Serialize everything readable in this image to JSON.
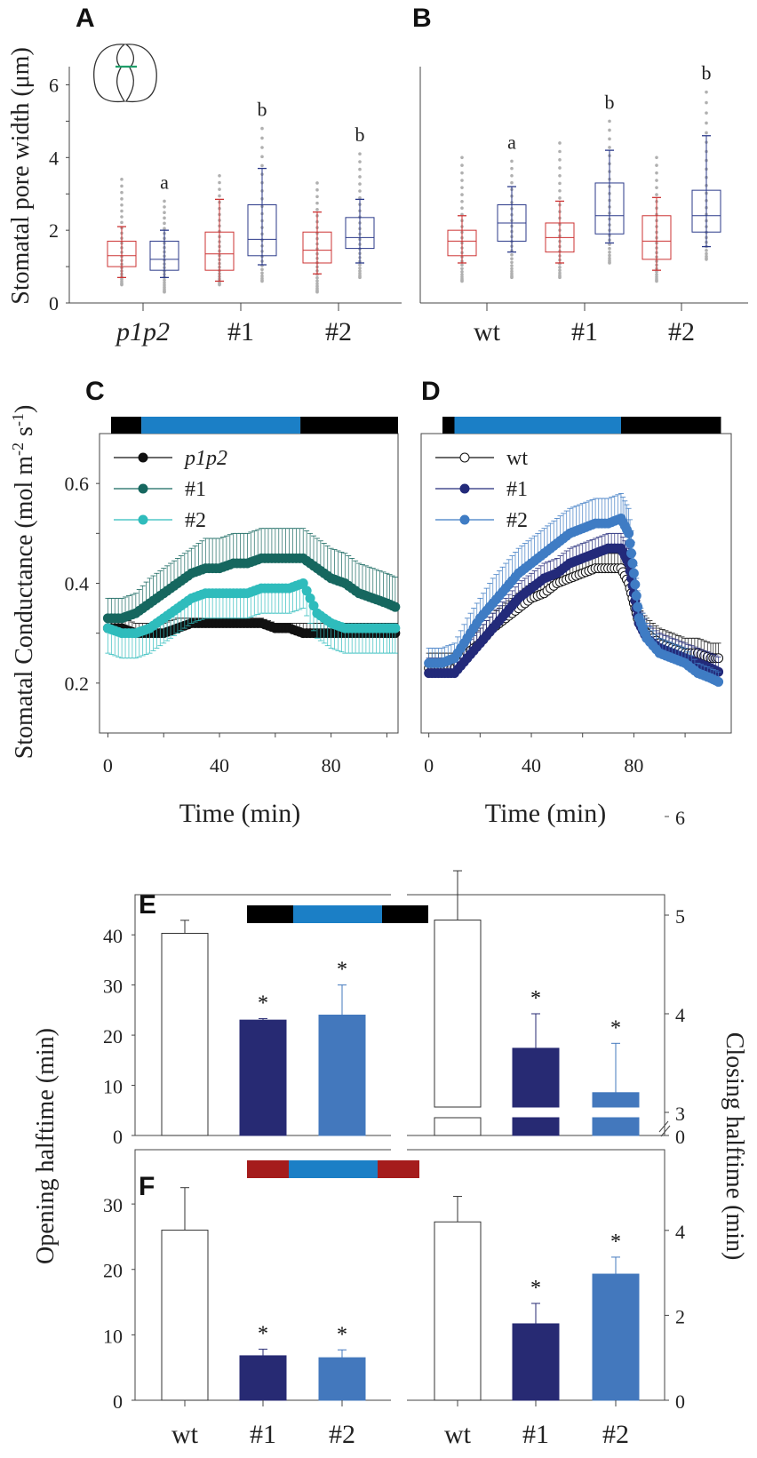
{
  "chart_data": [
    {
      "panel": "A",
      "type": "box",
      "ylabel": "Stomatal pore width (μm)",
      "ylim": [
        0,
        6.5
      ],
      "yticks": [
        0,
        2,
        4,
        6
      ],
      "groups": [
        "p1p2",
        "#1",
        "#2"
      ],
      "box_colors": {
        "dark": "#cc3333",
        "light": "#2b3a8a"
      },
      "boxes": [
        {
          "group": "p1p2",
          "condition": "dark",
          "whisker_low": 0.7,
          "q1": 1.0,
          "median": 1.3,
          "q3": 1.7,
          "whisker_high": 2.1,
          "points_min": 0.5,
          "points_max": 3.4
        },
        {
          "group": "p1p2",
          "condition": "light",
          "whisker_low": 0.7,
          "q1": 0.9,
          "median": 1.2,
          "q3": 1.7,
          "whisker_high": 2.0,
          "points_min": 0.3,
          "points_max": 2.8,
          "letter": "a"
        },
        {
          "group": "#1",
          "condition": "dark",
          "whisker_low": 0.6,
          "q1": 0.9,
          "median": 1.35,
          "q3": 1.95,
          "whisker_high": 2.85,
          "points_min": 0.5,
          "points_max": 3.5
        },
        {
          "group": "#1",
          "condition": "light",
          "whisker_low": 1.05,
          "q1": 1.3,
          "median": 1.75,
          "q3": 2.7,
          "whisker_high": 3.7,
          "points_min": 0.6,
          "points_max": 4.8,
          "letter": "b"
        },
        {
          "group": "#2",
          "condition": "dark",
          "whisker_low": 0.8,
          "q1": 1.1,
          "median": 1.45,
          "q3": 1.95,
          "whisker_high": 2.5,
          "points_min": 0.3,
          "points_max": 3.3
        },
        {
          "group": "#2",
          "condition": "light",
          "whisker_low": 1.1,
          "q1": 1.5,
          "median": 1.8,
          "q3": 2.35,
          "whisker_high": 2.85,
          "points_min": 0.7,
          "points_max": 4.1,
          "letter": "b"
        }
      ]
    },
    {
      "panel": "B",
      "type": "box",
      "ylim": [
        0,
        6.5
      ],
      "groups": [
        "wt",
        "#1",
        "#2"
      ],
      "boxes": [
        {
          "group": "wt",
          "condition": "dark",
          "whisker_low": 1.1,
          "q1": 1.3,
          "median": 1.7,
          "q3": 2.0,
          "whisker_high": 2.4,
          "points_min": 0.6,
          "points_max": 4.0
        },
        {
          "group": "wt",
          "condition": "light",
          "whisker_low": 1.4,
          "q1": 1.7,
          "median": 2.2,
          "q3": 2.7,
          "whisker_high": 3.2,
          "points_min": 0.7,
          "points_max": 3.9,
          "letter": "a"
        },
        {
          "group": "#1",
          "condition": "dark",
          "whisker_low": 1.1,
          "q1": 1.4,
          "median": 1.8,
          "q3": 2.2,
          "whisker_high": 2.8,
          "points_min": 0.7,
          "points_max": 4.4
        },
        {
          "group": "#1",
          "condition": "light",
          "whisker_low": 1.65,
          "q1": 1.9,
          "median": 2.4,
          "q3": 3.3,
          "whisker_high": 4.2,
          "points_min": 1.1,
          "points_max": 5.0,
          "letter": "b"
        },
        {
          "group": "#2",
          "condition": "dark",
          "whisker_low": 0.9,
          "q1": 1.2,
          "median": 1.7,
          "q3": 2.4,
          "whisker_high": 2.9,
          "points_min": 0.6,
          "points_max": 4.0
        },
        {
          "group": "#2",
          "condition": "light",
          "whisker_low": 1.55,
          "q1": 1.95,
          "median": 2.4,
          "q3": 3.1,
          "whisker_high": 4.6,
          "points_min": 1.2,
          "points_max": 5.8,
          "letter": "b"
        }
      ]
    },
    {
      "panel": "C",
      "type": "line",
      "ylabel": "Stomatal Conductance (mol m-2 s-1)",
      "xlabel": "Time (min)",
      "xlim": [
        -3,
        104
      ],
      "ylim": [
        0.1,
        0.7
      ],
      "xticks": [
        0,
        40,
        80
      ],
      "yticks": [
        0.2,
        0.4,
        0.6
      ],
      "light_bar": {
        "dark_end": 12,
        "blue_end": 69,
        "end": 104
      },
      "legend": "top-left",
      "series": [
        {
          "name": "p1p2",
          "color": "#111111",
          "marker": "filled",
          "x": [
            0,
            5,
            10,
            15,
            20,
            25,
            30,
            35,
            40,
            45,
            50,
            55,
            60,
            65,
            70,
            75,
            80,
            85,
            90,
            95,
            100,
            104
          ],
          "y": [
            0.31,
            0.31,
            0.3,
            0.3,
            0.3,
            0.31,
            0.32,
            0.32,
            0.32,
            0.32,
            0.32,
            0.32,
            0.31,
            0.31,
            0.3,
            0.3,
            0.3,
            0.3,
            0.3,
            0.3,
            0.3,
            0.3
          ],
          "err": [
            0.02,
            0.02,
            0.02,
            0.02,
            0.02,
            0.02,
            0.01,
            0.01,
            0.01,
            0.01,
            0.01,
            0.01,
            0.01,
            0.01,
            0.02,
            0.02,
            0.02,
            0.02,
            0.02,
            0.02,
            0.02,
            0.02
          ]
        },
        {
          "name": "#1",
          "color": "#16675f",
          "marker": "filled",
          "x": [
            0,
            5,
            10,
            15,
            20,
            25,
            30,
            35,
            40,
            45,
            50,
            55,
            60,
            65,
            70,
            75,
            80,
            85,
            90,
            95,
            100,
            104
          ],
          "y": [
            0.33,
            0.33,
            0.34,
            0.36,
            0.38,
            0.4,
            0.42,
            0.43,
            0.43,
            0.44,
            0.44,
            0.45,
            0.45,
            0.45,
            0.45,
            0.43,
            0.41,
            0.4,
            0.38,
            0.37,
            0.36,
            0.35
          ],
          "err": [
            0.04,
            0.04,
            0.04,
            0.05,
            0.05,
            0.05,
            0.05,
            0.06,
            0.06,
            0.06,
            0.06,
            0.06,
            0.06,
            0.06,
            0.06,
            0.06,
            0.06,
            0.06,
            0.06,
            0.06,
            0.06,
            0.06
          ]
        },
        {
          "name": "#2",
          "color": "#2fbcbc",
          "marker": "filled",
          "x": [
            0,
            5,
            10,
            15,
            20,
            25,
            30,
            35,
            40,
            45,
            50,
            55,
            60,
            65,
            70,
            75,
            80,
            85,
            90,
            95,
            100,
            104
          ],
          "y": [
            0.31,
            0.3,
            0.3,
            0.31,
            0.33,
            0.35,
            0.37,
            0.38,
            0.38,
            0.38,
            0.38,
            0.39,
            0.39,
            0.39,
            0.4,
            0.34,
            0.32,
            0.31,
            0.31,
            0.31,
            0.31,
            0.31
          ],
          "err": [
            0.05,
            0.05,
            0.05,
            0.05,
            0.05,
            0.05,
            0.05,
            0.05,
            0.05,
            0.05,
            0.05,
            0.05,
            0.05,
            0.05,
            0.05,
            0.05,
            0.05,
            0.05,
            0.05,
            0.05,
            0.05,
            0.05
          ]
        }
      ]
    },
    {
      "panel": "D",
      "type": "line",
      "xlabel": "Time (min)",
      "xlim": [
        -3,
        118
      ],
      "ylim": [
        0.1,
        0.7
      ],
      "xticks": [
        0,
        40,
        80
      ],
      "light_bar": {
        "dark_end": 10,
        "blue_end": 75,
        "end": 114
      },
      "legend": "top-left",
      "series": [
        {
          "name": "wt",
          "color": "#111111",
          "marker": "open",
          "x": [
            0,
            5,
            10,
            15,
            20,
            25,
            30,
            35,
            40,
            45,
            50,
            55,
            60,
            65,
            70,
            75,
            78,
            80,
            82,
            85,
            90,
            95,
            100,
            105,
            110,
            114
          ],
          "y": [
            0.23,
            0.23,
            0.23,
            0.26,
            0.28,
            0.31,
            0.33,
            0.35,
            0.37,
            0.38,
            0.4,
            0.41,
            0.42,
            0.43,
            0.43,
            0.43,
            0.4,
            0.36,
            0.32,
            0.3,
            0.28,
            0.27,
            0.26,
            0.26,
            0.25,
            0.25
          ],
          "err": [
            0.03,
            0.03,
            0.03,
            0.03,
            0.03,
            0.03,
            0.03,
            0.03,
            0.03,
            0.03,
            0.03,
            0.03,
            0.03,
            0.03,
            0.03,
            0.03,
            0.03,
            0.03,
            0.03,
            0.03,
            0.03,
            0.03,
            0.03,
            0.03,
            0.03,
            0.03
          ]
        },
        {
          "name": "#1",
          "color": "#232a7a",
          "marker": "filled",
          "x": [
            0,
            5,
            10,
            15,
            20,
            25,
            30,
            35,
            40,
            45,
            50,
            55,
            60,
            65,
            70,
            75,
            78,
            80,
            82,
            85,
            90,
            95,
            100,
            105,
            110,
            114
          ],
          "y": [
            0.22,
            0.22,
            0.22,
            0.25,
            0.28,
            0.31,
            0.34,
            0.37,
            0.39,
            0.41,
            0.42,
            0.44,
            0.45,
            0.46,
            0.47,
            0.47,
            0.44,
            0.38,
            0.32,
            0.29,
            0.27,
            0.26,
            0.25,
            0.24,
            0.23,
            0.22
          ],
          "err": [
            0.03,
            0.03,
            0.03,
            0.03,
            0.03,
            0.03,
            0.03,
            0.03,
            0.03,
            0.03,
            0.03,
            0.03,
            0.03,
            0.03,
            0.03,
            0.03,
            0.03,
            0.03,
            0.03,
            0.03,
            0.03,
            0.03,
            0.03,
            0.03,
            0.03,
            0.03
          ]
        },
        {
          "name": "#2",
          "color": "#3f7cc4",
          "marker": "filled",
          "x": [
            0,
            5,
            10,
            15,
            20,
            25,
            30,
            35,
            40,
            45,
            50,
            55,
            60,
            65,
            70,
            75,
            78,
            80,
            82,
            85,
            90,
            95,
            100,
            105,
            110,
            114
          ],
          "y": [
            0.24,
            0.24,
            0.25,
            0.29,
            0.33,
            0.36,
            0.39,
            0.42,
            0.44,
            0.46,
            0.48,
            0.5,
            0.51,
            0.52,
            0.52,
            0.53,
            0.5,
            0.42,
            0.33,
            0.29,
            0.26,
            0.25,
            0.24,
            0.22,
            0.21,
            0.2
          ],
          "err": [
            0.03,
            0.03,
            0.03,
            0.04,
            0.04,
            0.05,
            0.05,
            0.05,
            0.05,
            0.05,
            0.05,
            0.05,
            0.05,
            0.05,
            0.05,
            0.05,
            0.05,
            0.04,
            0.03,
            0.03,
            0.03,
            0.03,
            0.03,
            0.02,
            0.02,
            0.02
          ]
        }
      ]
    },
    {
      "panel": "E",
      "type": "bar",
      "left": {
        "ylabel": "Opening halftime (min)",
        "ylim": [
          0,
          48
        ],
        "yticks": [
          0,
          10,
          20,
          30,
          40
        ],
        "categories": [
          "wt",
          "#1",
          "#2"
        ],
        "values": [
          40.3,
          23,
          24
        ],
        "errors": [
          2.6,
          0.3,
          6
        ],
        "significant": [
          false,
          true,
          true
        ]
      },
      "right": {
        "ylabel": "Closing halftime (min)",
        "yticks": [
          0,
          3,
          4,
          5,
          6
        ],
        "axis_break": true,
        "categories": [
          "wt",
          "#1",
          "#2"
        ],
        "values": [
          4.95,
          3.65,
          3.2
        ],
        "errors": [
          0.5,
          0.35,
          0.5
        ],
        "significant": [
          false,
          true,
          true
        ]
      },
      "bar_colors": [
        "#ffffff",
        "#272a73",
        "#4378bd"
      ],
      "light_bar": [
        "#000000",
        "#1b7fc6",
        "#000000"
      ]
    },
    {
      "panel": "F",
      "type": "bar",
      "left": {
        "ylim": [
          0,
          38
        ],
        "yticks": [
          0,
          10,
          20,
          30
        ],
        "categories": [
          "wt",
          "#1",
          "#2"
        ],
        "values": [
          26,
          6.8,
          6.5
        ],
        "errors": [
          6.5,
          1.0,
          1.2
        ],
        "significant": [
          false,
          true,
          true
        ]
      },
      "right": {
        "ylim": [
          0,
          5.9
        ],
        "yticks": [
          0,
          2,
          4
        ],
        "categories": [
          "wt",
          "#1",
          "#2"
        ],
        "values": [
          4.2,
          1.8,
          2.97
        ],
        "errors": [
          0.6,
          0.48,
          0.4
        ],
        "significant": [
          false,
          true,
          true
        ]
      },
      "bar_colors": [
        "#ffffff",
        "#272a73",
        "#4378bd"
      ],
      "light_bar": [
        "#a51c1c",
        "#1b7fc6",
        "#a51c1c"
      ]
    }
  ],
  "labels": {
    "A": "A",
    "B": "B",
    "C": "C",
    "D": "D",
    "E": "E",
    "F": "F",
    "ylabelAB": "Stomatal pore width (μm)",
    "ylabelCD_main": "Stomatal Conductance (mol m",
    "ylabelCD_sup1": "-2",
    "ylabelCD_mid": " s",
    "ylabelCD_sup2": "-1",
    "ylabelCD_end": ")",
    "xlabelCD": "Time (min)",
    "ylabelEF_left": "Opening halftime (min)",
    "ylabelEF_right": "Closing halftime (min)",
    "sig": "*"
  }
}
